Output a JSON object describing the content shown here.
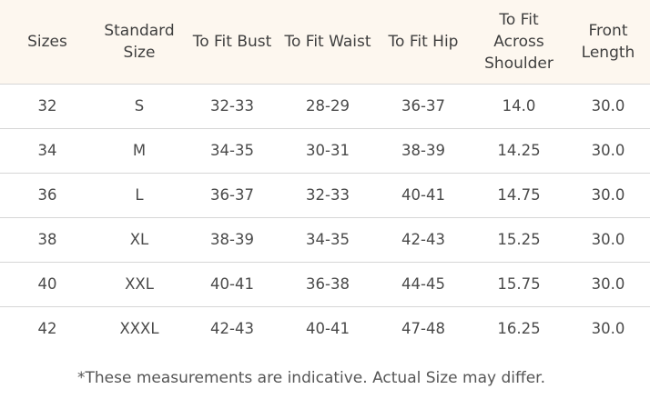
{
  "size_chart": {
    "columns": [
      "Sizes",
      "Standard Size",
      "To Fit Bust",
      "To Fit Waist",
      "To Fit Hip",
      "To Fit Across Shoulder",
      "Front Length"
    ],
    "rows": [
      [
        "32",
        "S",
        "32-33",
        "28-29",
        "36-37",
        "14.0",
        "30.0"
      ],
      [
        "34",
        "M",
        "34-35",
        "30-31",
        "38-39",
        "14.25",
        "30.0"
      ],
      [
        "36",
        "L",
        "36-37",
        "32-33",
        "40-41",
        "14.75",
        "30.0"
      ],
      [
        "38",
        "XL",
        "38-39",
        "34-35",
        "42-43",
        "15.25",
        "30.0"
      ],
      [
        "40",
        "XXL",
        "40-41",
        "36-38",
        "44-45",
        "15.75",
        "30.0"
      ],
      [
        "42",
        "XXXL",
        "42-43",
        "40-41",
        "47-48",
        "16.25",
        "30.0"
      ]
    ],
    "note": "*These measurements are indicative. Actual Size may differ."
  }
}
